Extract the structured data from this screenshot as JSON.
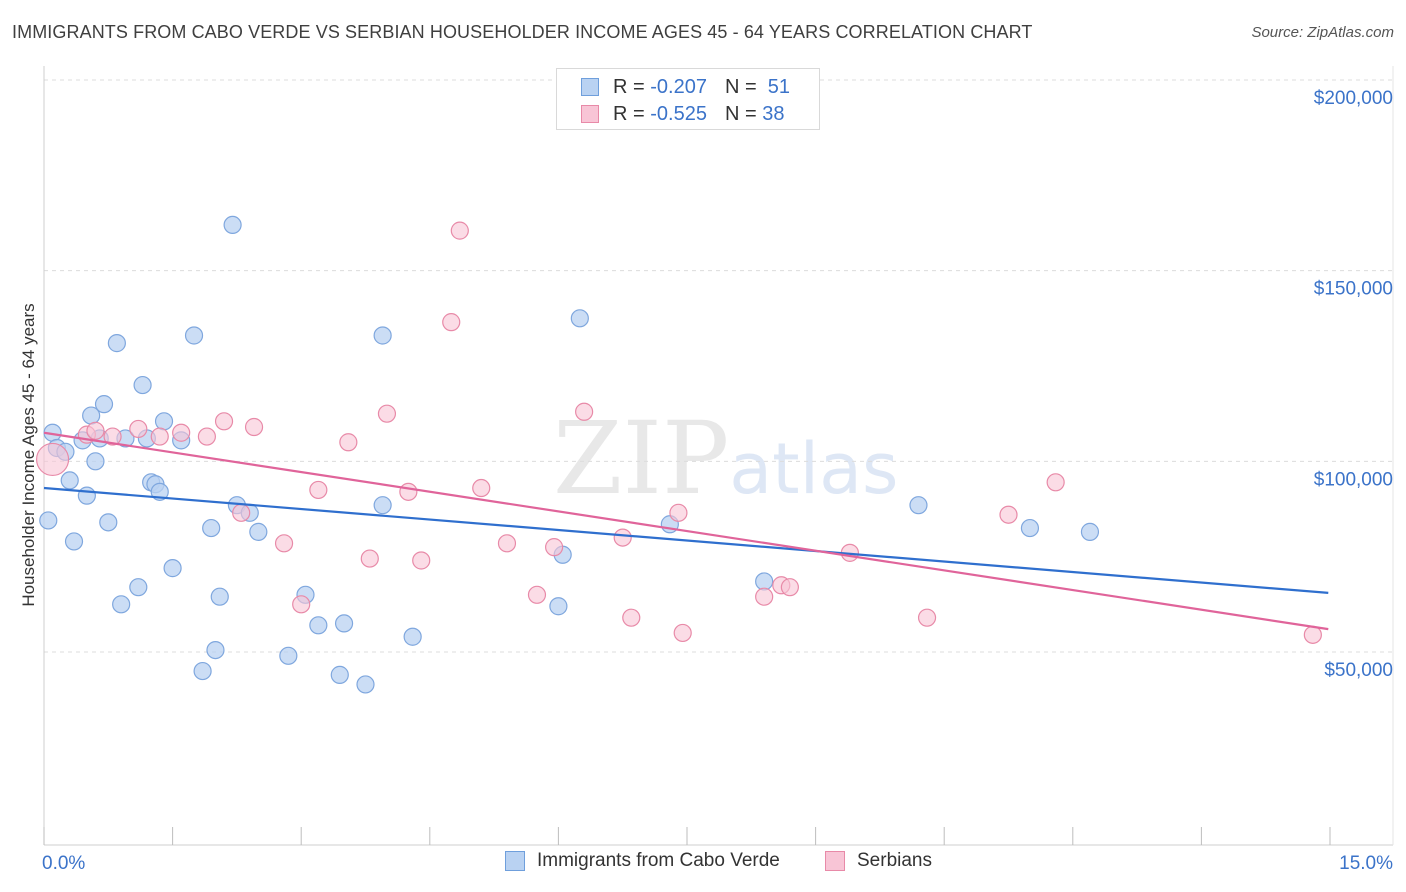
{
  "title": "IMMIGRANTS FROM CABO VERDE VS SERBIAN HOUSEHOLDER INCOME AGES 45 - 64 YEARS CORRELATION CHART",
  "source": "Source: ZipAtlas.com",
  "watermark": {
    "zip": "ZIP",
    "atlas": "atlas"
  },
  "legend": {
    "series1": {
      "r_label": "R =",
      "r_value": "-0.207",
      "n_label": "N =",
      "n_value": "51"
    },
    "series2": {
      "r_label": "R =",
      "r_value": "-0.525",
      "n_label": "N =",
      "n_value": "38"
    }
  },
  "colors": {
    "blue": "#3b73c9",
    "blue_fill": "#b9d2f2",
    "blue_line": "#2f6fce",
    "pink_fill": "#f8c5d6",
    "pink_stroke": "#e88aa8",
    "pink_line": "#e0649a",
    "grid": "#dcdcdc"
  },
  "chart_data": {
    "type": "scatter",
    "title": "IMMIGRANTS FROM CABO VERDE VS SERBIAN HOUSEHOLDER INCOME AGES 45 - 64 YEARS CORRELATION CHART",
    "xlabel": "",
    "ylabel": "Householder Income Ages 45 - 64 years",
    "xlim": [
      0,
      15
    ],
    "ylim": [
      0,
      200000
    ],
    "x_tick_labels": [
      "0.0%",
      "15.0%"
    ],
    "y_tick_labels": [
      "$50,000",
      "$100,000",
      "$150,000",
      "$200,000"
    ],
    "y_ticks": [
      50000,
      100000,
      150000,
      200000
    ],
    "series": [
      {
        "name": "Immigrants from Cabo Verde",
        "color": "blue",
        "trend": {
          "x": [
            0,
            14.98
          ],
          "y": [
            93000,
            65500
          ]
        },
        "points": [
          [
            0.05,
            84500
          ],
          [
            0.1,
            107500
          ],
          [
            0.15,
            103500
          ],
          [
            0.25,
            102500
          ],
          [
            0.3,
            95000
          ],
          [
            0.35,
            79000
          ],
          [
            0.45,
            105500
          ],
          [
            0.5,
            91000
          ],
          [
            0.55,
            112000
          ],
          [
            0.6,
            100000
          ],
          [
            0.65,
            106000
          ],
          [
            0.7,
            115000
          ],
          [
            0.75,
            84000
          ],
          [
            0.85,
            131000
          ],
          [
            0.9,
            62500
          ],
          [
            0.95,
            106000
          ],
          [
            1.1,
            67000
          ],
          [
            1.15,
            120000
          ],
          [
            1.2,
            106000
          ],
          [
            1.25,
            94500
          ],
          [
            1.3,
            94000
          ],
          [
            1.35,
            92000
          ],
          [
            1.4,
            110500
          ],
          [
            1.5,
            72000
          ],
          [
            1.6,
            105500
          ],
          [
            1.75,
            133000
          ],
          [
            1.85,
            45000
          ],
          [
            1.95,
            82500
          ],
          [
            2.0,
            50500
          ],
          [
            2.05,
            64500
          ],
          [
            2.2,
            162000
          ],
          [
            2.25,
            88500
          ],
          [
            2.4,
            86500
          ],
          [
            2.5,
            81500
          ],
          [
            2.85,
            49000
          ],
          [
            3.05,
            65000
          ],
          [
            3.2,
            57000
          ],
          [
            3.45,
            44000
          ],
          [
            3.5,
            57500
          ],
          [
            3.75,
            41500
          ],
          [
            3.95,
            88500
          ],
          [
            3.95,
            133000
          ],
          [
            4.3,
            54000
          ],
          [
            6.0,
            62000
          ],
          [
            6.05,
            75500
          ],
          [
            6.25,
            137500
          ],
          [
            7.3,
            83500
          ],
          [
            8.4,
            68500
          ],
          [
            10.2,
            88500
          ],
          [
            11.5,
            82500
          ],
          [
            12.2,
            81500
          ]
        ]
      },
      {
        "name": "Serbians",
        "color": "pink",
        "trend": {
          "x": [
            0,
            14.98
          ],
          "y": [
            107500,
            56000
          ]
        },
        "points": [
          [
            0.1,
            100500
          ],
          [
            0.5,
            107000
          ],
          [
            0.6,
            108000
          ],
          [
            0.8,
            106500
          ],
          [
            1.1,
            108500
          ],
          [
            1.35,
            106500
          ],
          [
            1.6,
            107500
          ],
          [
            1.9,
            106500
          ],
          [
            2.1,
            110500
          ],
          [
            2.3,
            86500
          ],
          [
            2.45,
            109000
          ],
          [
            2.8,
            78500
          ],
          [
            3.0,
            62500
          ],
          [
            3.2,
            92500
          ],
          [
            3.55,
            105000
          ],
          [
            3.8,
            74500
          ],
          [
            4.0,
            112500
          ],
          [
            4.25,
            92000
          ],
          [
            4.4,
            74000
          ],
          [
            4.75,
            136500
          ],
          [
            4.85,
            160500
          ],
          [
            5.1,
            93000
          ],
          [
            5.4,
            78500
          ],
          [
            5.75,
            65000
          ],
          [
            5.95,
            77500
          ],
          [
            6.3,
            113000
          ],
          [
            6.75,
            80000
          ],
          [
            6.85,
            59000
          ],
          [
            7.4,
            86500
          ],
          [
            7.45,
            55000
          ],
          [
            8.4,
            64500
          ],
          [
            8.6,
            67500
          ],
          [
            8.7,
            67000
          ],
          [
            9.4,
            76000
          ],
          [
            10.3,
            59000
          ],
          [
            11.25,
            86000
          ],
          [
            11.8,
            94500
          ],
          [
            14.8,
            54500
          ]
        ]
      }
    ]
  },
  "bottom_legend": {
    "series1": "Immigrants from Cabo Verde",
    "series2": "Serbians"
  }
}
